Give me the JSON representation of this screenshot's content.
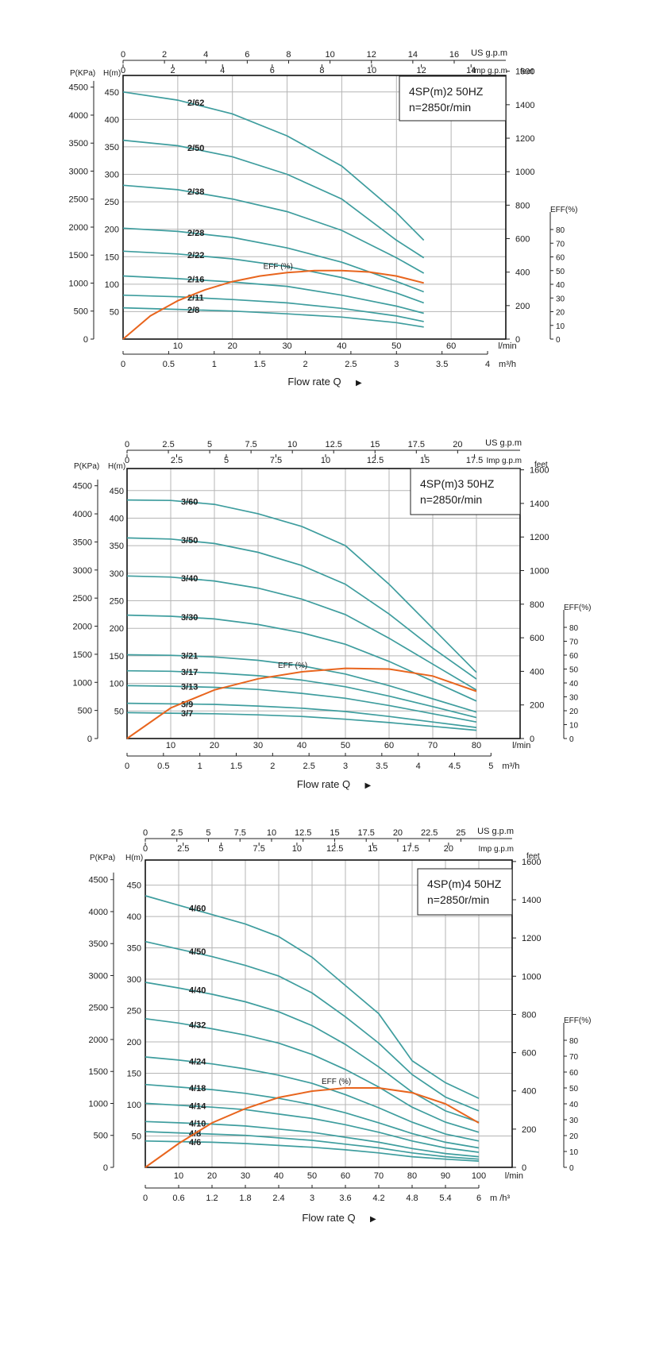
{
  "colors": {
    "head_curve": "#3e9d9e",
    "eff_curve": "#e8651e",
    "grid": "#b5b5b5",
    "text": "#1a1a1a"
  },
  "chart_data": [
    {
      "type": "line",
      "title": "4SP(m)2  50HZ",
      "subtitle": "n=2850r/min",
      "xlabel": "Flow rate Q",
      "x_unit": "l/min",
      "xlim": [
        0,
        70
      ],
      "ylabel_left": "H(m)",
      "ylabel_pressure": "P(KPa)",
      "ylabel_right": "feet",
      "ylabel_eff": "EFF(%)",
      "ylim": [
        0,
        480
      ],
      "x_ticks_lmin": [
        "10",
        "20",
        "30",
        "40",
        "50",
        "60"
      ],
      "x_ticks_m3h": [
        "0",
        "0.5",
        "1",
        "1.5",
        "2",
        "2.5",
        "3",
        "3.5",
        "4"
      ],
      "m3h_unit": "m³/h",
      "us_gpm_ticks": [
        "0",
        "2",
        "4",
        "6",
        "8",
        "10",
        "12",
        "14",
        "16"
      ],
      "us_gpm_label": "US g.p.m",
      "imp_gpm_ticks": [
        "0",
        "2",
        "4",
        "6",
        "8",
        "10",
        "12",
        "14"
      ],
      "imp_gpm_label": "Imp g.p.m",
      "h_ticks": [
        "50",
        "100",
        "150",
        "200",
        "250",
        "300",
        "350",
        "400",
        "450"
      ],
      "p_ticks": [
        "0",
        "500",
        "1000",
        "1500",
        "2000",
        "2500",
        "3000",
        "3500",
        "4000",
        "4500"
      ],
      "feet_ticks": [
        "0",
        "200",
        "400",
        "600",
        "800",
        "1000",
        "1200",
        "1400",
        "1600"
      ],
      "eff_ticks": [
        "0",
        "10",
        "20",
        "30",
        "40",
        "50",
        "60",
        "70",
        "80"
      ],
      "series": [
        {
          "name": "2/62",
          "x": [
            0,
            10,
            20,
            30,
            40,
            50,
            55
          ],
          "y": [
            450,
            435,
            410,
            370,
            315,
            230,
            180
          ]
        },
        {
          "name": "2/50",
          "x": [
            0,
            10,
            20,
            30,
            40,
            50,
            55
          ],
          "y": [
            362,
            352,
            332,
            300,
            255,
            180,
            148
          ]
        },
        {
          "name": "2/38",
          "x": [
            0,
            10,
            20,
            30,
            40,
            50,
            55
          ],
          "y": [
            280,
            272,
            255,
            232,
            198,
            148,
            120
          ]
        },
        {
          "name": "2/28",
          "x": [
            0,
            10,
            20,
            30,
            40,
            50,
            55
          ],
          "y": [
            202,
            196,
            185,
            166,
            140,
            105,
            86
          ]
        },
        {
          "name": "2/22",
          "x": [
            0,
            10,
            20,
            30,
            40,
            50,
            55
          ],
          "y": [
            160,
            155,
            146,
            132,
            112,
            84,
            66
          ]
        },
        {
          "name": "2/16",
          "x": [
            0,
            10,
            20,
            30,
            40,
            50,
            55
          ],
          "y": [
            115,
            110,
            104,
            96,
            80,
            60,
            47
          ]
        },
        {
          "name": "2/11",
          "x": [
            0,
            10,
            20,
            30,
            40,
            50,
            55
          ],
          "y": [
            80,
            77,
            72,
            66,
            56,
            42,
            32
          ]
        },
        {
          "name": "2/8",
          "x": [
            0,
            10,
            20,
            30,
            40,
            50,
            55
          ],
          "y": [
            57,
            54,
            51,
            46,
            40,
            30,
            22
          ]
        }
      ],
      "eff_label": "EFF (%)",
      "eff": {
        "x": [
          0,
          5,
          10,
          15,
          20,
          25,
          30,
          35,
          40,
          45,
          50,
          55
        ],
        "y": [
          0,
          17,
          28,
          36,
          42,
          46,
          48.5,
          50,
          50,
          49,
          46,
          41
        ]
      }
    },
    {
      "type": "line",
      "title": "4SP(m)3  50HZ",
      "subtitle": "n=2850r/min",
      "xlabel": "Flow rate Q",
      "x_unit": "l/min",
      "xlim": [
        0,
        90
      ],
      "ylabel_left": "H(m)",
      "ylabel_pressure": "P(KPa)",
      "ylabel_right": "feet",
      "ylabel_eff": "EFF(%)",
      "ylim": [
        0,
        490
      ],
      "x_ticks_lmin": [
        "10",
        "20",
        "30",
        "40",
        "50",
        "60",
        "70",
        "80"
      ],
      "x_ticks_m3h": [
        "0",
        "0.5",
        "1",
        "1.5",
        "2",
        "2.5",
        "3",
        "3.5",
        "4",
        "4.5",
        "5"
      ],
      "m3h_unit": "m³/h",
      "us_gpm_ticks": [
        "0",
        "2.5",
        "5",
        "7.5",
        "10",
        "12.5",
        "15",
        "17.5",
        "20"
      ],
      "us_gpm_label": "US g.p.m",
      "imp_gpm_ticks": [
        "0",
        "2.5",
        "5",
        "7.5",
        "10",
        "12.5",
        "15",
        "17.5"
      ],
      "imp_gpm_label": "Imp g.p.m",
      "h_ticks": [
        "50",
        "100",
        "150",
        "200",
        "250",
        "300",
        "350",
        "400",
        "450"
      ],
      "p_ticks": [
        "0",
        "500",
        "1000",
        "1500",
        "2000",
        "2500",
        "3000",
        "3500",
        "4000",
        "4500"
      ],
      "feet_ticks": [
        "0",
        "200",
        "400",
        "600",
        "800",
        "1000",
        "1200",
        "1400",
        "1600"
      ],
      "eff_ticks": [
        "0",
        "10",
        "20",
        "30",
        "40",
        "50",
        "60",
        "70",
        "80"
      ],
      "series": [
        {
          "name": "3/60",
          "x": [
            0,
            10,
            20,
            30,
            40,
            50,
            60,
            70,
            80
          ],
          "y": [
            433,
            432,
            425,
            408,
            385,
            350,
            280,
            200,
            120
          ]
        },
        {
          "name": "3/50",
          "x": [
            0,
            10,
            20,
            30,
            40,
            50,
            60,
            70,
            80
          ],
          "y": [
            364,
            362,
            354,
            338,
            314,
            280,
            226,
            164,
            108
          ]
        },
        {
          "name": "3/40",
          "x": [
            0,
            10,
            20,
            30,
            40,
            50,
            60,
            70,
            80
          ],
          "y": [
            295,
            293,
            286,
            273,
            253,
            225,
            182,
            135,
            88
          ]
        },
        {
          "name": "3/30",
          "x": [
            0,
            10,
            20,
            30,
            40,
            50,
            60,
            70,
            80
          ],
          "y": [
            224,
            222,
            217,
            207,
            192,
            171,
            140,
            104,
            68
          ]
        },
        {
          "name": "3/21",
          "x": [
            0,
            10,
            20,
            30,
            40,
            50,
            60,
            70,
            80
          ],
          "y": [
            152,
            151,
            148,
            142,
            132,
            117,
            96,
            72,
            48
          ]
        },
        {
          "name": "3/17",
          "x": [
            0,
            10,
            20,
            30,
            40,
            50,
            60,
            70,
            80
          ],
          "y": [
            123,
            122,
            119,
            114,
            106,
            94,
            77,
            58,
            38
          ]
        },
        {
          "name": "3/13",
          "x": [
            0,
            10,
            20,
            30,
            40,
            50,
            60,
            70,
            80
          ],
          "y": [
            96,
            95,
            93,
            89,
            82,
            73,
            60,
            45,
            30
          ]
        },
        {
          "name": "3/9",
          "x": [
            0,
            10,
            20,
            30,
            40,
            50,
            60,
            70,
            80
          ],
          "y": [
            64,
            63,
            62,
            59,
            55,
            49,
            40,
            30,
            20
          ]
        },
        {
          "name": "3/7",
          "x": [
            0,
            10,
            20,
            30,
            40,
            50,
            60,
            70,
            80
          ],
          "y": [
            47,
            46,
            45,
            43,
            40,
            35,
            29,
            22,
            15
          ]
        }
      ],
      "eff_label": "EFF (%)",
      "eff": {
        "x": [
          0,
          10,
          20,
          30,
          40,
          50,
          60,
          70,
          80
        ],
        "y": [
          0,
          22,
          35,
          43,
          48,
          50.5,
          50,
          45,
          34
        ]
      }
    },
    {
      "type": "line",
      "title": "4SP(m)4  50HZ",
      "subtitle": "n=2850r/min",
      "xlabel": "Flow rate Q",
      "x_unit": "l/min",
      "xlim": [
        0,
        110
      ],
      "ylabel_left": "H(m)",
      "ylabel_pressure": "P(KPa)",
      "ylabel_right": "feet",
      "ylabel_eff": "EFF(%)",
      "ylim": [
        0,
        490
      ],
      "x_ticks_lmin": [
        "10",
        "20",
        "30",
        "40",
        "50",
        "60",
        "70",
        "80",
        "90",
        "100"
      ],
      "x_ticks_m3h": [
        "0",
        "0.6",
        "1.2",
        "1.8",
        "2.4",
        "3",
        "3.6",
        "4.2",
        "4.8",
        "5.4",
        "6"
      ],
      "m3h_unit": "m /h³",
      "us_gpm_ticks": [
        "0",
        "2.5",
        "5",
        "7.5",
        "10",
        "12.5",
        "15",
        "17.5",
        "20",
        "22.5",
        "25"
      ],
      "us_gpm_label": "US g.p.m",
      "imp_gpm_ticks": [
        "0",
        "2.5",
        "5",
        "7.5",
        "10",
        "12.5",
        "15",
        "17.5",
        "20"
      ],
      "imp_gpm_label": "Imp g.p.m",
      "h_ticks": [
        "50",
        "100",
        "150",
        "200",
        "250",
        "300",
        "350",
        "400",
        "450"
      ],
      "p_ticks": [
        "0",
        "500",
        "1000",
        "1500",
        "2000",
        "2500",
        "3000",
        "3500",
        "4000",
        "4500"
      ],
      "feet_ticks": [
        "0",
        "200",
        "400",
        "600",
        "800",
        "1000",
        "1200",
        "1400",
        "1600"
      ],
      "eff_ticks": [
        "0",
        "10",
        "20",
        "30",
        "40",
        "50",
        "60",
        "70",
        "80"
      ],
      "series": [
        {
          "name": "4/60",
          "x": [
            0,
            10,
            20,
            30,
            40,
            50,
            60,
            70,
            80,
            90,
            100
          ],
          "y": [
            433,
            418,
            403,
            388,
            368,
            335,
            290,
            245,
            170,
            135,
            110
          ]
        },
        {
          "name": "4/50",
          "x": [
            0,
            10,
            20,
            30,
            40,
            50,
            60,
            70,
            80,
            90,
            100
          ],
          "y": [
            360,
            348,
            336,
            322,
            305,
            278,
            240,
            198,
            148,
            112,
            90
          ]
        },
        {
          "name": "4/40",
          "x": [
            0,
            10,
            20,
            30,
            40,
            50,
            60,
            70,
            80,
            90,
            100
          ],
          "y": [
            295,
            286,
            276,
            264,
            248,
            226,
            196,
            160,
            120,
            90,
            72
          ]
        },
        {
          "name": "4/32",
          "x": [
            0,
            10,
            20,
            30,
            40,
            50,
            60,
            70,
            80,
            90,
            100
          ],
          "y": [
            237,
            230,
            221,
            211,
            198,
            180,
            156,
            128,
            96,
            72,
            56
          ]
        },
        {
          "name": "4/24",
          "x": [
            0,
            10,
            20,
            30,
            40,
            50,
            60,
            70,
            80,
            90,
            100
          ],
          "y": [
            176,
            171,
            165,
            157,
            147,
            134,
            116,
            95,
            72,
            53,
            42
          ]
        },
        {
          "name": "4/18",
          "x": [
            0,
            10,
            20,
            30,
            40,
            50,
            60,
            70,
            80,
            90,
            100
          ],
          "y": [
            132,
            128,
            124,
            118,
            110,
            100,
            87,
            71,
            54,
            40,
            31
          ]
        },
        {
          "name": "4/14",
          "x": [
            0,
            10,
            20,
            30,
            40,
            50,
            60,
            70,
            80,
            90,
            100
          ],
          "y": [
            102,
            99,
            96,
            92,
            85,
            78,
            68,
            56,
            42,
            31,
            24
          ]
        },
        {
          "name": "4/10",
          "x": [
            0,
            10,
            20,
            30,
            40,
            50,
            60,
            70,
            80,
            90,
            100
          ],
          "y": [
            73,
            71,
            69,
            66,
            61,
            56,
            48,
            40,
            30,
            22,
            17
          ]
        },
        {
          "name": "4/8",
          "x": [
            0,
            10,
            20,
            30,
            40,
            50,
            60,
            70,
            80,
            90,
            100
          ],
          "y": [
            57,
            55,
            53,
            51,
            47,
            43,
            37,
            31,
            23,
            17,
            13
          ]
        },
        {
          "name": "4/6",
          "x": [
            0,
            10,
            20,
            30,
            40,
            50,
            60,
            70,
            80,
            90,
            100
          ],
          "y": [
            42,
            41,
            40,
            38,
            35,
            32,
            28,
            23,
            17,
            13,
            10
          ]
        }
      ],
      "eff_label": "EFF (%)",
      "eff": {
        "x": [
          0,
          10,
          20,
          30,
          40,
          50,
          60,
          70,
          80,
          90,
          100
        ],
        "y": [
          0,
          15,
          28,
          37,
          44,
          48,
          50,
          50,
          47,
          40,
          28
        ]
      }
    }
  ]
}
